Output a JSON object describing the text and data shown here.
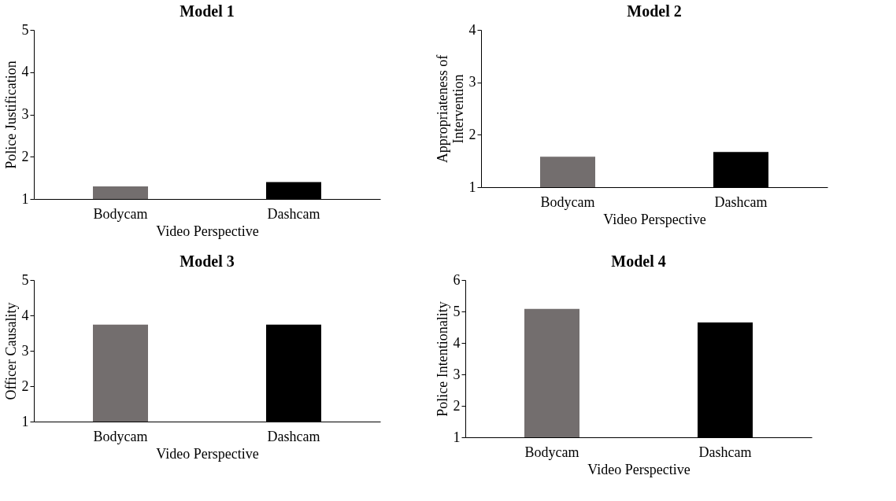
{
  "chart_data": [
    {
      "type": "bar",
      "title": "Model 1",
      "xlabel": "Video Perspective",
      "ylabel": "Police Justification",
      "categories": [
        "Bodycam",
        "Dashcam"
      ],
      "values": [
        1.3,
        1.4
      ],
      "colors": [
        "#736e6e",
        "#000000"
      ],
      "ylim": [
        1,
        5
      ],
      "yticks": [
        1,
        2,
        3,
        4,
        5
      ],
      "grid": false
    },
    {
      "type": "bar",
      "title": "Model 2",
      "xlabel": "Video Perspective",
      "ylabel": "Appropriateness of\nIntervention",
      "categories": [
        "Bodycam",
        "Dashcam"
      ],
      "values": [
        1.58,
        1.67
      ],
      "colors": [
        "#736e6e",
        "#000000"
      ],
      "ylim": [
        1,
        4
      ],
      "yticks": [
        1,
        2,
        3,
        4
      ],
      "grid": false
    },
    {
      "type": "bar",
      "title": "Model 3",
      "xlabel": "Video Perspective",
      "ylabel": "Officer Causality",
      "categories": [
        "Bodycam",
        "Dashcam"
      ],
      "values": [
        3.74,
        3.74
      ],
      "colors": [
        "#736e6e",
        "#000000"
      ],
      "ylim": [
        1,
        5
      ],
      "yticks": [
        1,
        2,
        3,
        4,
        5
      ],
      "grid": false
    },
    {
      "type": "bar",
      "title": "Model 4",
      "xlabel": "Video Perspective",
      "ylabel": "Police Intentionality",
      "categories": [
        "Bodycam",
        "Dashcam"
      ],
      "values": [
        5.08,
        4.65
      ],
      "colors": [
        "#736e6e",
        "#000000"
      ],
      "ylim": [
        1,
        6
      ],
      "yticks": [
        1,
        2,
        3,
        4,
        5,
        6
      ],
      "grid": false
    }
  ]
}
